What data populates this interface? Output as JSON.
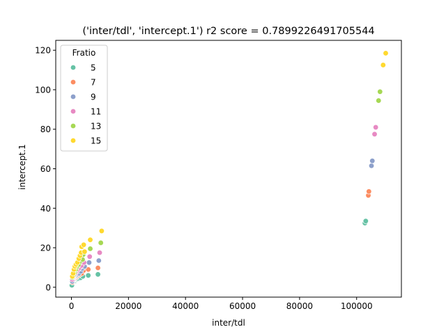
{
  "chart_data": {
    "type": "scatter",
    "title": "('inter/tdl', 'intercept.1') r2 score = 0.7899226491705544",
    "xlabel": "inter/tdl",
    "ylabel": "intercept.1",
    "xlim": [
      -5500,
      115700
    ],
    "ylim": [
      -5,
      125
    ],
    "xticks": [
      0,
      20000,
      40000,
      60000,
      80000,
      100000
    ],
    "yticks": [
      0,
      20,
      40,
      60,
      80,
      100,
      120
    ],
    "grid": false,
    "legend": {
      "title": "Fratio",
      "placement": "top-left"
    },
    "series": [
      {
        "name": "5",
        "color": "#66c2a5",
        "points": [
          [
            150,
            1
          ],
          [
            400,
            2.5
          ],
          [
            700,
            3
          ],
          [
            900,
            3.5
          ],
          [
            1200,
            3.2
          ],
          [
            1500,
            3.8
          ],
          [
            1800,
            4
          ],
          [
            2200,
            4.2
          ],
          [
            2600,
            4.5
          ],
          [
            3200,
            4.8
          ],
          [
            4000,
            5.5
          ],
          [
            5900,
            6
          ],
          [
            9300,
            6.5
          ],
          [
            102900,
            32.5
          ],
          [
            103200,
            33.5
          ]
        ]
      },
      {
        "name": "7",
        "color": "#fc8d62",
        "points": [
          [
            300,
            2.5
          ],
          [
            600,
            3.5
          ],
          [
            900,
            4
          ],
          [
            1200,
            4.5
          ],
          [
            1600,
            5
          ],
          [
            2000,
            5.5
          ],
          [
            2500,
            6
          ],
          [
            3000,
            6.5
          ],
          [
            3600,
            7
          ],
          [
            4300,
            8.5
          ],
          [
            5900,
            9
          ],
          [
            9300,
            9.8
          ],
          [
            104100,
            46.5
          ],
          [
            104300,
            48.5
          ]
        ]
      },
      {
        "name": "9",
        "color": "#8da0cb",
        "points": [
          [
            300,
            3
          ],
          [
            600,
            4
          ],
          [
            900,
            5
          ],
          [
            1300,
            5.5
          ],
          [
            1700,
            6
          ],
          [
            2100,
            6.5
          ],
          [
            2600,
            7
          ],
          [
            3200,
            8
          ],
          [
            3800,
            9.5
          ],
          [
            4600,
            10.5
          ],
          [
            6200,
            12.5
          ],
          [
            9600,
            13.5
          ],
          [
            105200,
            61.5
          ],
          [
            105500,
            64
          ]
        ]
      },
      {
        "name": "11",
        "color": "#e78ac3",
        "points": [
          [
            300,
            4
          ],
          [
            600,
            5
          ],
          [
            1000,
            6
          ],
          [
            1400,
            7
          ],
          [
            1800,
            8
          ],
          [
            2300,
            9
          ],
          [
            2900,
            10
          ],
          [
            3500,
            11
          ],
          [
            4400,
            12.5
          ],
          [
            6400,
            15.5
          ],
          [
            9900,
            17.5
          ],
          [
            106300,
            77.5
          ],
          [
            106700,
            81
          ]
        ]
      },
      {
        "name": "13",
        "color": "#a6d854",
        "points": [
          [
            300,
            5
          ],
          [
            700,
            6
          ],
          [
            1100,
            7.5
          ],
          [
            1500,
            9
          ],
          [
            2000,
            10.5
          ],
          [
            2500,
            11.5
          ],
          [
            3000,
            13
          ],
          [
            3900,
            14
          ],
          [
            4100,
            16.5
          ],
          [
            6600,
            19.5
          ],
          [
            10300,
            22.5
          ],
          [
            107700,
            94.5
          ],
          [
            108200,
            99
          ]
        ]
      },
      {
        "name": "15",
        "color": "#ffd92f",
        "points": [
          [
            300,
            5.5
          ],
          [
            600,
            7
          ],
          [
            900,
            9
          ],
          [
            1200,
            10.5
          ],
          [
            1600,
            11.5
          ],
          [
            2100,
            12.5
          ],
          [
            2600,
            14.5
          ],
          [
            3000,
            16
          ],
          [
            3400,
            17.5
          ],
          [
            3600,
            20.5
          ],
          [
            4300,
            21.5
          ],
          [
            4600,
            18
          ],
          [
            6600,
            24
          ],
          [
            10600,
            28.5
          ],
          [
            109300,
            112.5
          ],
          [
            110200,
            118.5
          ]
        ]
      }
    ]
  }
}
